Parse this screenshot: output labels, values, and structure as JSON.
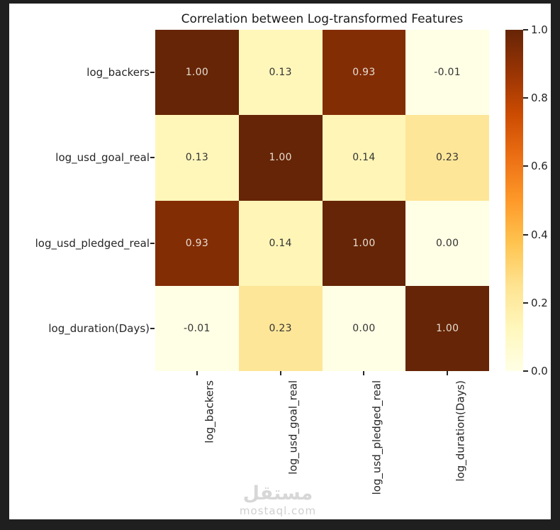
{
  "frame": {
    "background": "#1f1f1f",
    "figure_background": "#ffffff"
  },
  "title": "Correlation between Log-transformed Features",
  "chart_data": {
    "type": "heatmap",
    "title": "Correlation between Log-transformed Features",
    "categories": [
      "log_backers",
      "log_usd_goal_real",
      "log_usd_pledged_real",
      "log_duration(Days)"
    ],
    "matrix": [
      [
        1.0,
        0.13,
        0.93,
        -0.01
      ],
      [
        0.13,
        1.0,
        0.14,
        0.23
      ],
      [
        0.93,
        0.14,
        1.0,
        0.0
      ],
      [
        -0.01,
        0.23,
        0.0,
        1.0
      ]
    ],
    "annotation_decimals": 2,
    "vmin": 0.0,
    "vmax": 1.0,
    "colormap": {
      "name": "YlOrBr",
      "stops": [
        "#ffffe5",
        "#fff7bc",
        "#fee391",
        "#fec44f",
        "#fe9929",
        "#ec7014",
        "#cc4c02",
        "#993404",
        "#662506"
      ]
    },
    "colorbar_ticks": [
      0.0,
      0.2,
      0.4,
      0.6,
      0.8,
      1.0
    ],
    "colorbar_tick_labels": [
      "0.0",
      "0.2",
      "0.4",
      "0.6",
      "0.8",
      "1.0"
    ],
    "legend_position": "right",
    "grid": false
  },
  "colors": {
    "title_text": "#1a1a1a",
    "tick_text": "#262626",
    "annot_dark": "#333333",
    "annot_light": "#e6ddd2",
    "tick_mark": "#262626"
  },
  "watermark": {
    "logo_text": "مستقل",
    "site_text": "mostaql.com"
  }
}
